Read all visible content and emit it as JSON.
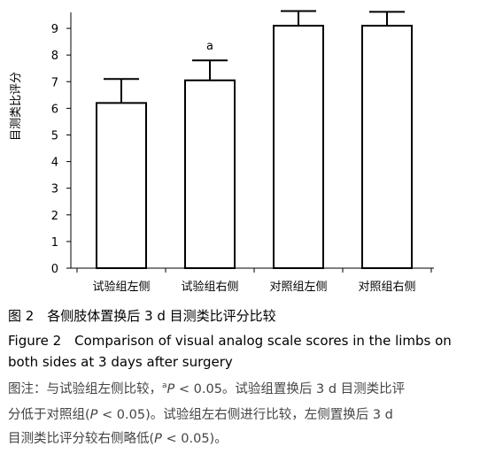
{
  "chart_data": {
    "type": "bar",
    "y_label": "目测类比评分",
    "categories": [
      "试验组左侧",
      "试验组右侧",
      "对照组左侧",
      "对照组右侧"
    ],
    "values": [
      6.2,
      7.05,
      9.1,
      9.1
    ],
    "errors": [
      0.9,
      0.75,
      0.55,
      0.52
    ],
    "annotation": "a",
    "color": "#ffffff",
    "ylim": [
      0,
      9.6
    ],
    "yticks": [
      0,
      1,
      2,
      3,
      4,
      5,
      6,
      7,
      8,
      9
    ],
    "grid": false
  },
  "caption": {
    "title": "图 2　各侧肢体置换后 3 d 目测类比评分比较",
    "english": [
      "Figure 2　Comparison of visual analog scale scores in the limbs on",
      "both sides at 3 days after surgery"
    ],
    "note": [
      [
        "图注：与试验组左侧比较，",
        "a",
        "P",
        " < 0.05。试验组置换后 3 d 目测类比评"
      ],
      [
        "分低于对照组(",
        "P",
        " < 0.05)。试验组左右侧进行比较，左侧置换后 3 d"
      ],
      [
        "目测类比评分较右侧略低(",
        "P",
        " < 0.05)。"
      ]
    ]
  }
}
